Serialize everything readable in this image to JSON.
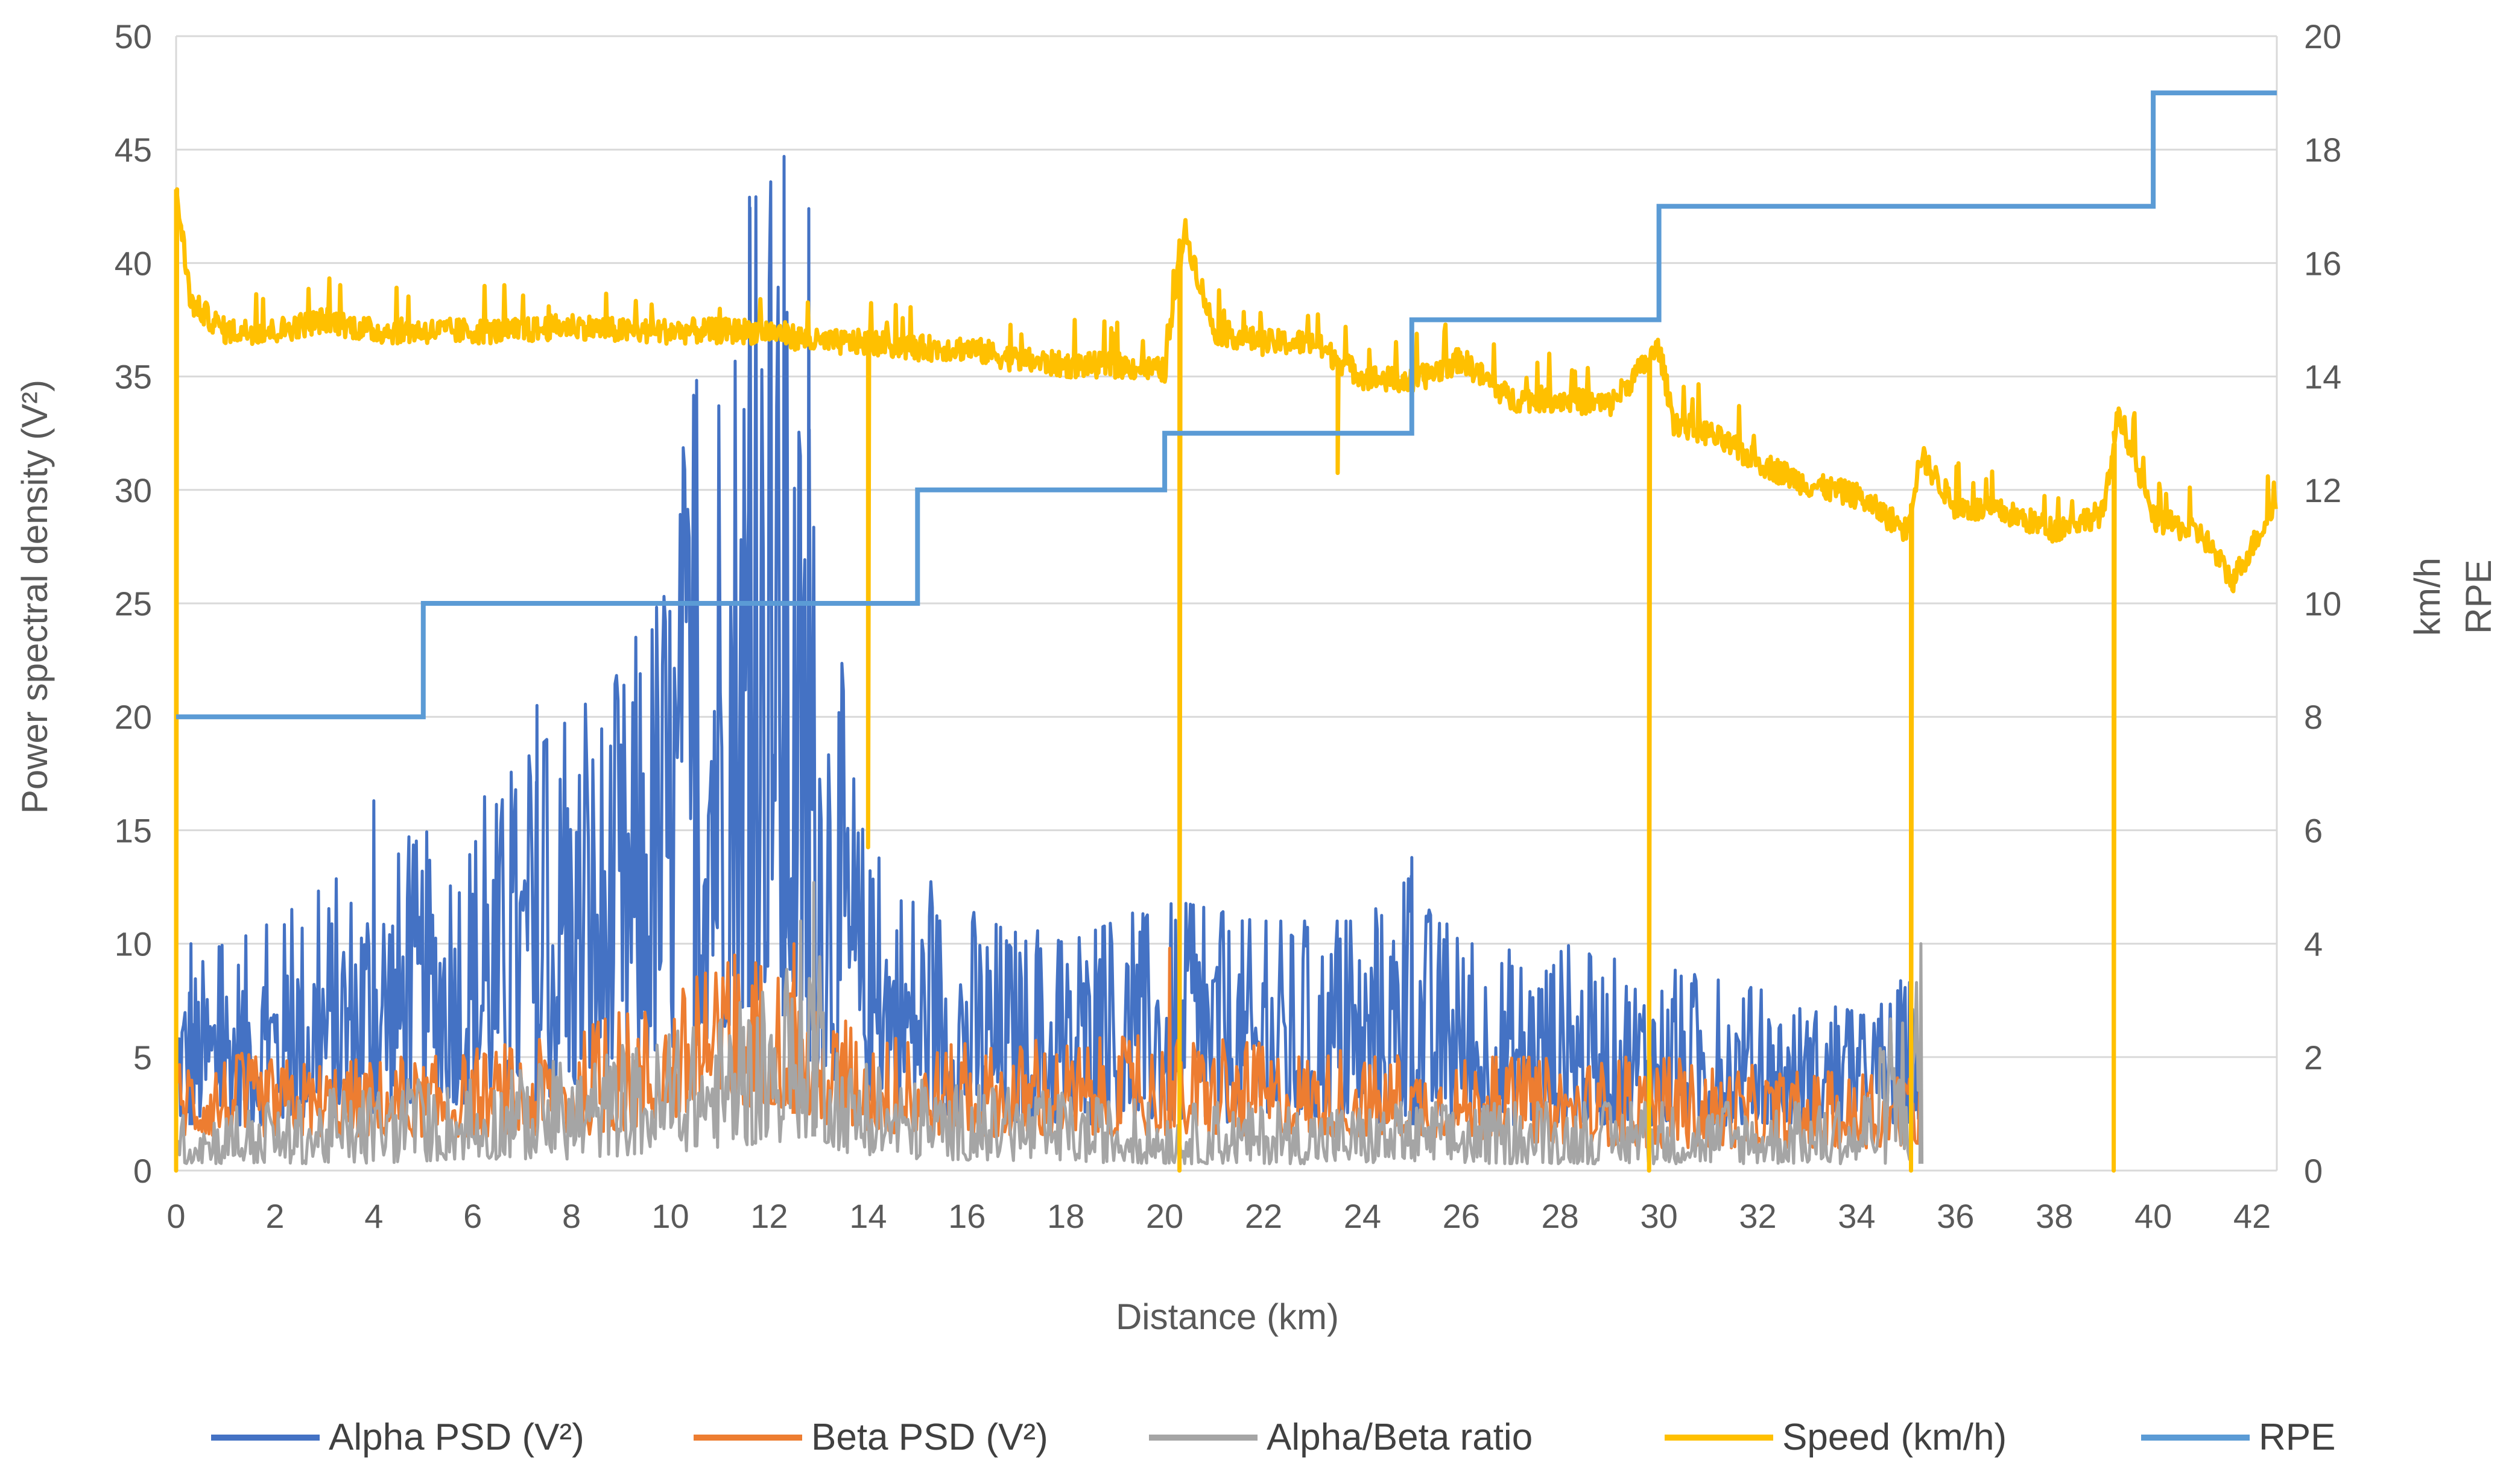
{
  "chart_data": {
    "type": "line",
    "title": "",
    "xlabel": "Distance (km)",
    "ylabel_left": "Power spectral density (V²)",
    "ylabel_right_1": "km/h",
    "ylabel_right_2": "RPE",
    "xlim": [
      0,
      42.5
    ],
    "ylim_left": [
      0,
      50
    ],
    "ylim_right": [
      0,
      20
    ],
    "x_ticks": [
      0,
      2,
      4,
      6,
      8,
      10,
      12,
      14,
      16,
      18,
      20,
      22,
      24,
      26,
      28,
      30,
      32,
      34,
      36,
      38,
      40,
      42
    ],
    "y_left_ticks": [
      0,
      5,
      10,
      15,
      20,
      25,
      30,
      35,
      40,
      45,
      50
    ],
    "y_right_ticks": [
      0,
      2,
      4,
      6,
      8,
      10,
      12,
      14,
      16,
      18,
      20
    ],
    "grid": true,
    "legend_position": "bottom",
    "series": [
      {
        "name": "Alpha PSD (V²)",
        "color": "#4472C4",
        "axis": "left",
        "x_range": [
          0,
          35.3
        ],
        "envelope": [
          [
            0,
            2,
            9
          ],
          [
            2,
            2,
            11
          ],
          [
            4,
            2.5,
            14
          ],
          [
            6,
            3,
            16
          ],
          [
            7.5,
            3,
            19
          ],
          [
            9,
            4,
            22
          ],
          [
            10,
            5,
            29
          ],
          [
            11,
            6,
            40
          ],
          [
            12,
            8,
            44
          ],
          [
            13,
            4,
            30
          ],
          [
            14,
            3,
            14
          ],
          [
            16,
            2,
            12
          ],
          [
            18,
            2,
            10
          ],
          [
            20,
            2,
            12
          ],
          [
            22,
            2,
            11
          ],
          [
            24,
            2,
            11
          ],
          [
            25,
            2,
            13
          ],
          [
            26,
            2,
            10
          ],
          [
            28,
            2,
            10
          ],
          [
            30,
            2,
            9
          ],
          [
            32,
            2,
            8
          ],
          [
            34,
            2,
            7
          ],
          [
            35.3,
            2,
            9
          ]
        ],
        "peaks": [
          [
            12.3,
            44.7
          ],
          [
            11.6,
            42.9
          ],
          [
            12.8,
            42.4
          ],
          [
            7.3,
            20.5
          ],
          [
            10.5,
            30
          ],
          [
            4,
            16.3
          ],
          [
            25,
            13.8
          ],
          [
            0.3,
            10
          ]
        ]
      },
      {
        "name": "Beta PSD (V²)",
        "color": "#ED7D31",
        "axis": "left",
        "x_range": [
          0,
          35.3
        ],
        "envelope": [
          [
            0,
            1.5,
            5.5
          ],
          [
            2,
            1.5,
            5
          ],
          [
            5,
            1.5,
            5
          ],
          [
            8,
            1.5,
            6
          ],
          [
            10,
            2,
            8
          ],
          [
            11,
            2.5,
            9
          ],
          [
            12,
            3,
            10
          ],
          [
            13,
            2,
            7
          ],
          [
            15,
            1.5,
            5.5
          ],
          [
            20,
            1.5,
            6
          ],
          [
            25,
            1.5,
            5
          ],
          [
            30,
            1,
            5
          ],
          [
            35.3,
            1,
            4
          ]
        ],
        "peaks": [
          [
            20.1,
            9.8
          ],
          [
            11.3,
            9.5
          ],
          [
            12.5,
            10
          ]
        ]
      },
      {
        "name": "Alpha/Beta ratio",
        "color": "#A5A5A5",
        "axis": "left",
        "x_range": [
          0,
          35.3
        ],
        "envelope": [
          [
            0,
            0.3,
            2.5
          ],
          [
            2,
            0.3,
            3
          ],
          [
            4,
            0.3,
            4
          ],
          [
            6,
            0.5,
            4
          ],
          [
            8,
            0.5,
            5
          ],
          [
            10,
            0.8,
            6
          ],
          [
            11,
            1,
            7
          ],
          [
            12,
            1.2,
            8
          ],
          [
            12.9,
            1.5,
            12.5
          ],
          [
            13.5,
            0.8,
            5
          ],
          [
            15,
            0.5,
            4
          ],
          [
            20,
            0.3,
            3
          ],
          [
            25,
            0.3,
            3
          ],
          [
            30,
            0.3,
            3
          ],
          [
            34,
            0.3,
            3
          ],
          [
            35.3,
            0.3,
            10
          ]
        ],
        "peaks": [
          [
            12.9,
            12.7
          ],
          [
            35.3,
            10
          ]
        ]
      },
      {
        "name": "Speed (km/h)",
        "color": "#FFC000",
        "axis": "right",
        "points": [
          [
            0,
            17.3
          ],
          [
            0.3,
            15.3
          ],
          [
            1,
            14.8
          ],
          [
            2,
            14.8
          ],
          [
            3,
            15
          ],
          [
            4,
            14.8
          ],
          [
            5,
            14.8
          ],
          [
            6,
            14.8
          ],
          [
            7,
            14.8
          ],
          [
            8,
            14.9
          ],
          [
            9,
            14.8
          ],
          [
            10,
            14.8
          ],
          [
            11,
            14.8
          ],
          [
            12,
            14.8
          ],
          [
            13,
            14.6
          ],
          [
            14,
            14.6
          ],
          [
            15,
            14.5
          ],
          [
            16,
            14.5
          ],
          [
            17,
            14.3
          ],
          [
            18,
            14.2
          ],
          [
            19,
            14.2
          ],
          [
            20,
            14.1
          ],
          [
            20.4,
            16.6
          ],
          [
            21,
            14.8
          ],
          [
            22,
            14.6
          ],
          [
            23,
            14.6
          ],
          [
            24,
            14
          ],
          [
            25,
            13.9
          ],
          [
            26,
            14.3
          ],
          [
            27,
            13.6
          ],
          [
            28,
            13.6
          ],
          [
            29,
            13.5
          ],
          [
            30,
            14.5
          ],
          [
            30.3,
            13.2
          ],
          [
            31,
            13
          ],
          [
            32,
            12.5
          ],
          [
            33,
            12.1
          ],
          [
            34,
            11.9
          ],
          [
            35,
            11.3
          ],
          [
            35.3,
            12.6
          ],
          [
            36,
            11.7
          ],
          [
            37,
            11.6
          ],
          [
            38,
            11.3
          ],
          [
            39,
            11.6
          ],
          [
            39.3,
            13.4
          ],
          [
            40,
            11.5
          ],
          [
            41,
            11.2
          ],
          [
            41.6,
            10.4
          ],
          [
            42,
            11
          ],
          [
            42.5,
            11.8
          ]
        ],
        "drops": [
          [
            0,
            0
          ],
          [
            14,
            5.7
          ],
          [
            20.3,
            0
          ],
          [
            23.5,
            12.3
          ],
          [
            29.8,
            0
          ],
          [
            35.1,
            0
          ],
          [
            39.2,
            0
          ]
        ]
      },
      {
        "name": "RPE",
        "color": "#5B9BD5",
        "axis": "right",
        "step_points": [
          [
            0,
            8
          ],
          [
            5,
            10
          ],
          [
            15,
            12
          ],
          [
            20,
            13
          ],
          [
            25,
            15
          ],
          [
            30,
            17
          ],
          [
            40,
            19
          ],
          [
            42.5,
            19
          ]
        ]
      }
    ]
  }
}
